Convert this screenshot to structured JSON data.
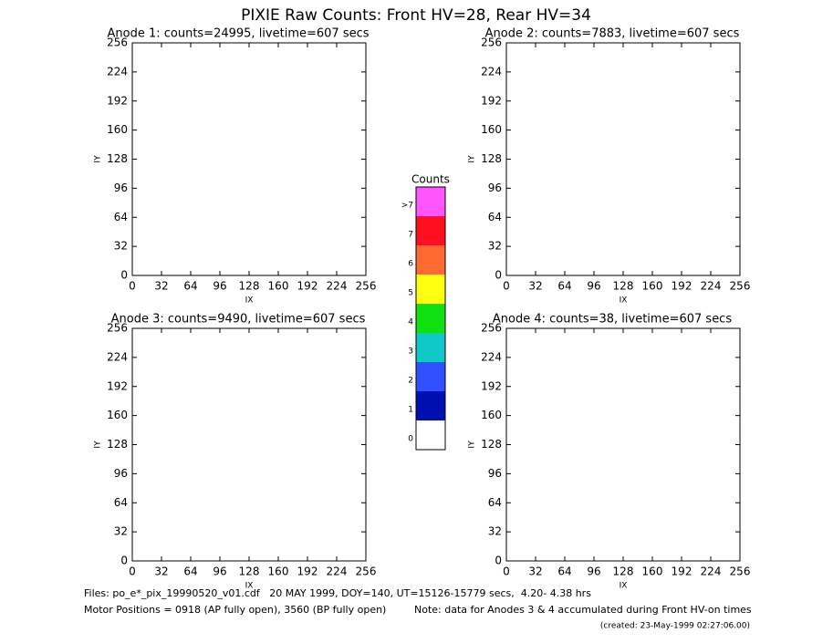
{
  "title": "PIXIE Raw Counts:  Front HV=28, Rear HV=34",
  "chart_data": [
    {
      "type": "heatmap",
      "title": "Anode 1: counts=24995, livetime=607 secs",
      "xlabel": "IX",
      "ylabel": "IY",
      "xlim": [
        0,
        256
      ],
      "ylim": [
        0,
        256
      ],
      "xticks": [
        0,
        32,
        64,
        96,
        128,
        160,
        192,
        224,
        256
      ],
      "yticks": [
        0,
        32,
        64,
        96,
        128,
        160,
        192,
        224,
        256
      ]
    },
    {
      "type": "heatmap",
      "title": "Anode 2: counts=7883, livetime=607 secs",
      "xlabel": "IX",
      "ylabel": "IY",
      "xlim": [
        0,
        256
      ],
      "ylim": [
        0,
        256
      ],
      "xticks": [
        0,
        32,
        64,
        96,
        128,
        160,
        192,
        224,
        256
      ],
      "yticks": [
        0,
        32,
        64,
        96,
        128,
        160,
        192,
        224,
        256
      ]
    },
    {
      "type": "heatmap",
      "title": "Anode 3: counts=9490, livetime=607 secs",
      "xlabel": "IX",
      "ylabel": "IY",
      "xlim": [
        0,
        256
      ],
      "ylim": [
        0,
        256
      ],
      "xticks": [
        0,
        32,
        64,
        96,
        128,
        160,
        192,
        224,
        256
      ],
      "yticks": [
        0,
        32,
        64,
        96,
        128,
        160,
        192,
        224,
        256
      ]
    },
    {
      "type": "heatmap",
      "title": "Anode 4: counts=38, livetime=607 secs",
      "xlabel": "IX",
      "ylabel": "IY",
      "xlim": [
        0,
        256
      ],
      "ylim": [
        0,
        256
      ],
      "xticks": [
        0,
        32,
        64,
        96,
        128,
        160,
        192,
        224,
        256
      ],
      "yticks": [
        0,
        32,
        64,
        96,
        128,
        160,
        192,
        224,
        256
      ]
    }
  ],
  "colorbar": {
    "title": "Counts",
    "levels": [
      {
        "label": ">7",
        "color": "#ff55ff"
      },
      {
        "label": "7",
        "color": "#ff1020"
      },
      {
        "label": "6",
        "color": "#ff6a30"
      },
      {
        "label": "5",
        "color": "#ffff10"
      },
      {
        "label": "4",
        "color": "#10e010"
      },
      {
        "label": "3",
        "color": "#10c8c8"
      },
      {
        "label": "2",
        "color": "#3050ff"
      },
      {
        "label": "1",
        "color": "#0010b0"
      },
      {
        "label": "0",
        "color": "#ffffff"
      }
    ]
  },
  "footer": {
    "files": "Files: po_e*_pix_19990520_v01.cdf   20 MAY 1999, DOY=140, UT=15126-15779 secs,  4.20- 4.38 hrs",
    "motor": "Motor Positions = 0918 (AP fully open), 3560 (BP fully open)",
    "note": "Note: data for Anodes 3 & 4 accumulated during Front HV-on times",
    "created": "(created: 23-May-1999 02:27:06.00)"
  }
}
